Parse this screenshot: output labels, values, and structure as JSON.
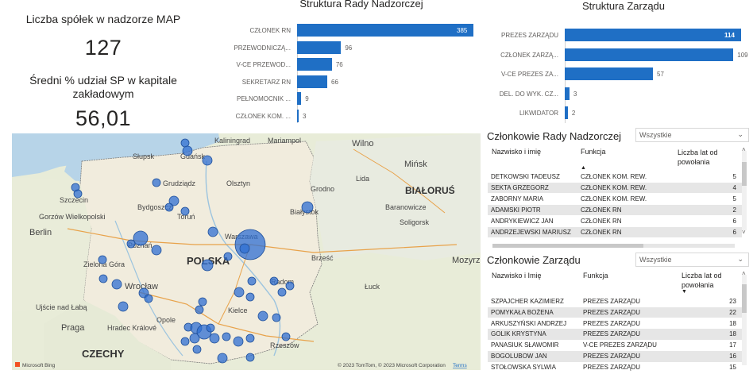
{
  "kpis": {
    "companies_title": "Liczba spółek w nadzorze MAP",
    "companies_value": "127",
    "share_title_line1": "Średni % udział SP w kapitale",
    "share_title_line2": "zakładowym",
    "share_value": "56,01"
  },
  "board_chart": {
    "title": "Struktura Rady Nadzorczej",
    "chart_data": {
      "type": "bar",
      "orientation": "horizontal",
      "categories": [
        "CZŁONEK RN",
        "PRZEWODNICZĄ...",
        "V-CE PRZEWOD...",
        "SEKRETARZ RN",
        "PEŁNOMOCNIK ...",
        "CZŁONEK KOM. ..."
      ],
      "values": [
        385,
        96,
        76,
        66,
        9,
        3
      ],
      "value_labels": [
        "385",
        "96",
        "76",
        "66",
        "9",
        "3"
      ],
      "bar_color": "#1f6fc5"
    }
  },
  "mgmt_chart": {
    "title": "Struktura Zarządu",
    "chart_data": {
      "type": "bar",
      "orientation": "horizontal",
      "categories": [
        "PREZES ZARZĄDU",
        "CZŁONEK ZARZĄ...",
        "V-CE PREZES ZA...",
        "DEL. DO WYK. CZ...",
        "LIKWIDATOR"
      ],
      "values": [
        114,
        109,
        57,
        3,
        2
      ],
      "value_labels": [
        "114",
        "109",
        "57",
        "3",
        "2"
      ],
      "bar_color": "#1f6fc5"
    }
  },
  "map": {
    "countries": [
      "POLSKA",
      "CZECHY",
      "BIAŁORUŚ"
    ],
    "cities": [
      "Kaliningrad",
      "Mariampol",
      "Wilno",
      "Mińsk",
      "Lida",
      "Grodno",
      "Słupsk",
      "Gdańsk",
      "Grudziądz",
      "Olsztyn",
      "Szczecin",
      "Gorzów Wielkopolski",
      "Bydgoszcz",
      "Toruń",
      "Białystok",
      "Berlin",
      "Poznań",
      "Warszawa",
      "Baranowicze",
      "Soligorsk",
      "Zielona Góra",
      "Brześć",
      "Mozyrz",
      "Wrocław",
      "Radom",
      "Łuck",
      "Kielce",
      "Ujście nad Łabą",
      "Opole",
      "Praga",
      "Hradec Králové",
      "Rzeszów"
    ],
    "attribution_left": "Microsoft Bing",
    "attribution_right": "© 2023 TomTom, © 2023 Microsoft Corporation",
    "terms": "Terms"
  },
  "rn_table": {
    "title": "Członkowie Rady Nadzorczej",
    "slicer_value": "Wszystkie",
    "headers": [
      "Nazwisko i imię",
      "Funkcja",
      "Liczba lat od powołania"
    ],
    "header_line2": "powołania",
    "header_line1": "Liczba lat od",
    "rows": [
      {
        "name": "DETKOWSKI TADEUSZ",
        "func": "CZŁONEK KOM. REW.",
        "years": "5"
      },
      {
        "name": "SEKTA GRZEGORZ",
        "func": "CZŁONEK KOM. REW.",
        "years": "4"
      },
      {
        "name": "ZABORNY MARIA",
        "func": "CZŁONEK KOM. REW.",
        "years": "5"
      },
      {
        "name": "ADAMSKI PIOTR",
        "func": "CZŁONEK RN",
        "years": "2"
      },
      {
        "name": "ANDRYKIEWICZ JAN",
        "func": "CZŁONEK RN",
        "years": "6"
      },
      {
        "name": "ANDRZEJEWSKI MARIUSZ",
        "func": "CZŁONEK RN",
        "years": "6"
      }
    ]
  },
  "z_table": {
    "title": "Członkowie Zarządu",
    "slicer_value": "Wszystkie",
    "headers": [
      "Nazwisko i Imię",
      "Funkcja"
    ],
    "header_line1": "Liczba lat od",
    "header_line2": "powołania",
    "rows": [
      {
        "name": "SZPAJCHER KAZIMIERZ",
        "func": "PREZES ZARZĄDU",
        "years": "23"
      },
      {
        "name": "POMYKAŁA BOŻENA",
        "func": "PREZES ZARZĄDU",
        "years": "22"
      },
      {
        "name": "ARKUSZYŃSKI ANDRZEJ",
        "func": "PREZES ZARZĄDU",
        "years": "18"
      },
      {
        "name": "GOLIK KRYSTYNA",
        "func": "PREZES ZARZĄDU",
        "years": "18"
      },
      {
        "name": "PANASIUK SŁAWOMIR",
        "func": "V-CE PREZES ZARZĄDU",
        "years": "17"
      },
      {
        "name": "BOGOLUBOW JAN",
        "func": "PREZES ZARZĄDU",
        "years": "16"
      },
      {
        "name": "STOŁOWSKA SYLWIA",
        "func": "PREZES ZARZĄDU",
        "years": "15"
      }
    ]
  }
}
